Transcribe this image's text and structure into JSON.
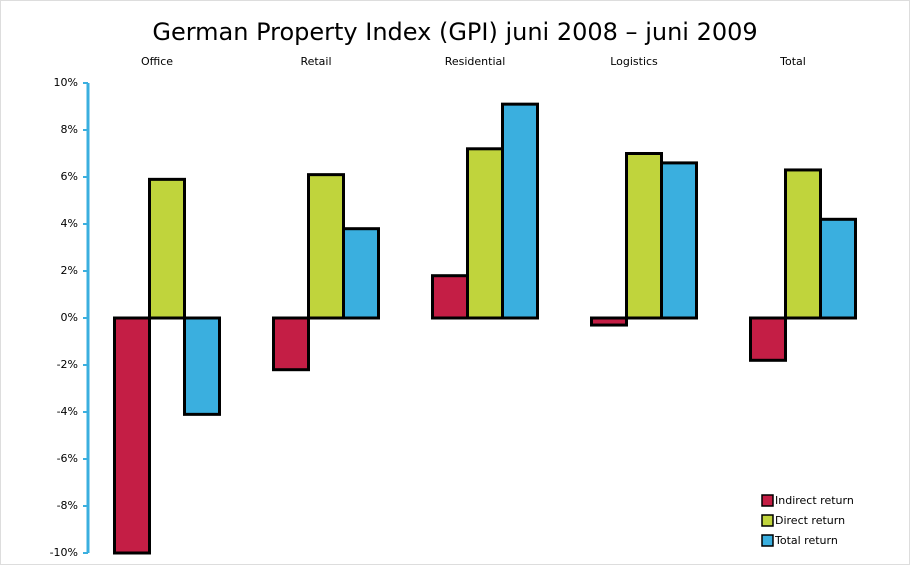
{
  "chart_data": {
    "type": "bar",
    "title": "German Property Index (GPI) juni 2008 – juni 2009",
    "categories": [
      "Office",
      "Retail",
      "Residential",
      "Logistics",
      "Total"
    ],
    "series": [
      {
        "name": "Indirect return",
        "color": "#c41e45",
        "values": [
          -10.0,
          -2.2,
          1.8,
          -0.3,
          -1.8
        ]
      },
      {
        "name": "Direct return",
        "color": "#c0d43c",
        "values": [
          5.9,
          6.1,
          7.2,
          7.0,
          6.3
        ]
      },
      {
        "name": "Total return",
        "color": "#3aafdf",
        "values": [
          -4.1,
          3.8,
          9.1,
          6.6,
          4.2
        ]
      }
    ],
    "ylim": [
      -10,
      10
    ],
    "yticks": [
      {
        "value": -10,
        "label": "-10%"
      },
      {
        "value": -8,
        "label": "-8%"
      },
      {
        "value": -6,
        "label": "-6%"
      },
      {
        "value": -4,
        "label": "-4%"
      },
      {
        "value": -2,
        "label": "-2%"
      },
      {
        "value": 0,
        "label": "0%"
      },
      {
        "value": 2,
        "label": "2%"
      },
      {
        "value": 4,
        "label": "4%"
      },
      {
        "value": 6,
        "label": "6%"
      },
      {
        "value": 8,
        "label": "8%"
      },
      {
        "value": 10,
        "label": "10%"
      }
    ],
    "legend": "lower right"
  }
}
